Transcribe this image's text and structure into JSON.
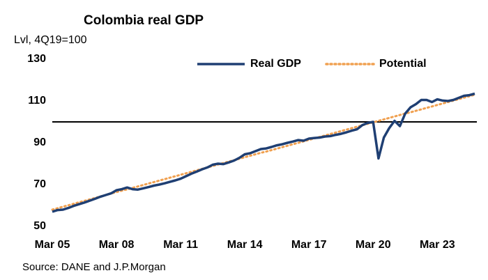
{
  "chart_data": {
    "type": "line",
    "title": "Colombia real GDP",
    "subtitle": "Lvl, 4Q19=100",
    "source": "Source: DANE and J.P.Morgan",
    "categories": [
      "Mar 05",
      null,
      null,
      null,
      null,
      null,
      null,
      null,
      null,
      null,
      null,
      null,
      "Mar 08",
      null,
      null,
      null,
      null,
      null,
      null,
      null,
      null,
      null,
      null,
      null,
      "Mar 11",
      null,
      null,
      null,
      null,
      null,
      null,
      null,
      null,
      null,
      null,
      null,
      "Mar 14",
      null,
      null,
      null,
      null,
      null,
      null,
      null,
      null,
      null,
      null,
      null,
      "Mar 17",
      null,
      null,
      null,
      null,
      null,
      null,
      null,
      null,
      null,
      null,
      null,
      "Mar 20",
      null,
      null,
      null,
      null,
      null,
      null,
      null,
      null,
      null,
      null,
      null,
      "Mar 23",
      null,
      null,
      null,
      null,
      null,
      null,
      null
    ],
    "series": [
      {
        "name": "Real GDP",
        "color": "#1f3f73",
        "style": "solid",
        "values": [
          57,
          57.8,
          58,
          58.8,
          59.8,
          60.6,
          61.4,
          62.3,
          63.2,
          64.2,
          65,
          65.8,
          67.3,
          67.8,
          68.6,
          67.8,
          67.6,
          68.2,
          68.8,
          69.5,
          70,
          70.6,
          71.3,
          72,
          72.8,
          74,
          75.2,
          76.2,
          77.3,
          78.2,
          79.5,
          80,
          79.8,
          80.6,
          81.5,
          82.8,
          84.5,
          85,
          86,
          87,
          87.3,
          88,
          88.8,
          89.3,
          90,
          90.6,
          91.3,
          91,
          92,
          92.3,
          92.5,
          93,
          93.2,
          93.8,
          94.3,
          95,
          95.8,
          96.5,
          98.5,
          99.5,
          100,
          82.5,
          92.5,
          97,
          100.5,
          98,
          104,
          107,
          108.5,
          110.5,
          110.5,
          109.5,
          110.8,
          110.2,
          110,
          110.5,
          111.5,
          112.5,
          112.8,
          113.5
        ]
      },
      {
        "name": "Potential",
        "color": "#f0a050",
        "style": "dotted",
        "values": [
          58.0,
          58.7,
          59.4,
          60.1,
          60.8,
          61.5,
          62.2,
          62.9,
          63.6,
          64.3,
          65.0,
          65.7,
          66.4,
          67.1,
          67.7,
          68.4,
          69.1,
          69.8,
          70.5,
          71.2,
          71.9,
          72.6,
          73.3,
          74.0,
          74.7,
          75.4,
          76.1,
          76.8,
          77.5,
          78.2,
          78.9,
          79.6,
          80.3,
          81.0,
          81.7,
          82.4,
          83.1,
          83.8,
          84.5,
          85.2,
          85.8,
          86.5,
          87.2,
          87.9,
          88.6,
          89.3,
          90.0,
          90.7,
          91.4,
          92.1,
          92.8,
          93.5,
          94.2,
          94.9,
          95.6,
          96.3,
          97.0,
          97.7,
          98.4,
          99.1,
          99.8,
          100.5,
          101.2,
          101.9,
          102.6,
          103.3,
          104.0,
          104.6,
          105.3,
          106.0,
          106.7,
          107.4,
          108.1,
          108.8,
          109.5,
          110.2,
          110.9,
          111.6,
          112.3,
          113.0
        ]
      }
    ],
    "ylim": [
      50,
      130
    ],
    "yticks": [
      50,
      70,
      90,
      110,
      130
    ],
    "hline": 100,
    "grid": false,
    "legend": "top-right"
  }
}
